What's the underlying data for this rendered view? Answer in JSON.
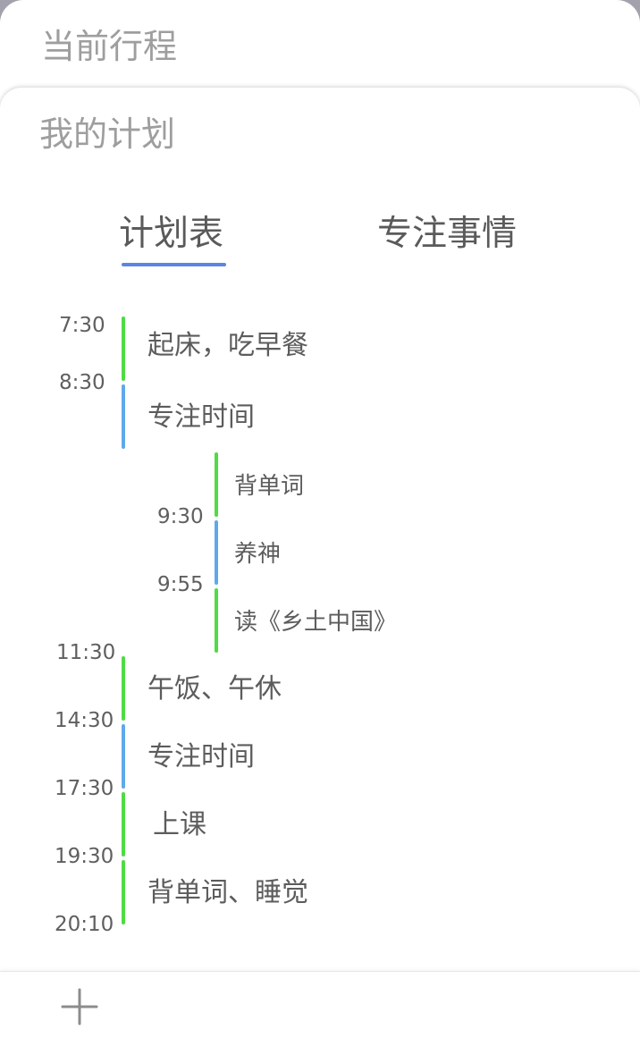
{
  "current_trip": {
    "title": "当前行程"
  },
  "my_plan": {
    "title": "我的计划"
  },
  "tabs": [
    {
      "label": "计划表",
      "active": true
    },
    {
      "label": "专注事情",
      "active": false
    }
  ],
  "times": {
    "t0730": "7:30",
    "t0830": "8:30",
    "t0930": "9:30",
    "t0955": "9:55",
    "t1130": "11:30",
    "t1430": "14:30",
    "t1730": "17:30",
    "t1930": "19:30",
    "t2010": "20:10"
  },
  "schedule": [
    {
      "label": "起床，吃早餐",
      "color": "green"
    },
    {
      "label": "专注时间",
      "color": "blue"
    },
    {
      "sub": [
        {
          "label": "背单词",
          "color": "green"
        },
        {
          "label": "养神",
          "color": "blue"
        },
        {
          "label": "读《乡土中国》",
          "color": "green"
        }
      ]
    },
    {
      "label": "午饭、午休",
      "color": "green"
    },
    {
      "label": "专注时间",
      "color": "blue"
    },
    {
      "label": "上课",
      "color": "green"
    },
    {
      "label": "背单词、睡觉",
      "color": "green"
    }
  ],
  "colors": {
    "accent": "#5b86e0",
    "green_bar": "#4fdb45",
    "blue_bar": "#5fa9ea"
  },
  "bottom_bar": {
    "add_icon": "plus-icon"
  }
}
